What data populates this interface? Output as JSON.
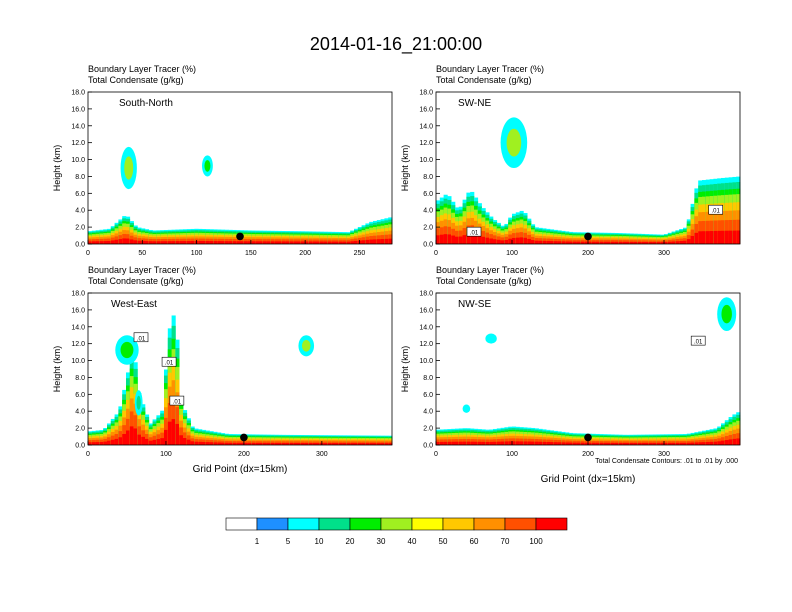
{
  "figure": {
    "title": "2014-01-16_21:00:00",
    "footnote": "Total Condensate Contours: .01 to .01 by .000"
  },
  "chart_data": [
    {
      "type": "heatmap",
      "panel_label": "South-North",
      "line1": "Boundary Layer Tracer    (%)",
      "line2": "Total Condensate    (g/kg)",
      "ylabel": "Height (km)",
      "xlabel": "",
      "xlim": [
        0,
        280
      ],
      "ylim": [
        0,
        18
      ],
      "xticks": [
        0,
        50,
        100,
        150,
        200,
        250
      ],
      "yticks": [
        "0.0",
        "2.0",
        "4.0",
        "6.0",
        "8.0",
        "10.0",
        "12.0",
        "14.0",
        "16.0",
        "18.0"
      ],
      "marker_x": 140,
      "contour_labels": [],
      "blobs": [
        {
          "x": [
            30,
            45
          ],
          "y": [
            6.5,
            11.5
          ],
          "v": [
            5,
            30
          ]
        },
        {
          "x": [
            105,
            115
          ],
          "y": [
            8,
            10.5
          ],
          "v": [
            5,
            20
          ]
        }
      ],
      "tops": [
        [
          0,
          1.5
        ],
        [
          20,
          1.8
        ],
        [
          35,
          3.5
        ],
        [
          45,
          2
        ],
        [
          60,
          1.6
        ],
        [
          100,
          1.8
        ],
        [
          150,
          1.6
        ],
        [
          200,
          1.5
        ],
        [
          240,
          1.4
        ],
        [
          260,
          2.6
        ],
        [
          280,
          3.2
        ]
      ]
    },
    {
      "type": "heatmap",
      "panel_label": "SW-NE",
      "line1": "Boundary Layer Tracer    (%)",
      "line2": "Total Condensate    (g/kg)",
      "ylabel": "Height (km)",
      "xlabel": "",
      "xlim": [
        0,
        400
      ],
      "ylim": [
        0,
        18
      ],
      "xticks": [
        0,
        100,
        200,
        300
      ],
      "yticks": [
        "0.0",
        "2.0",
        "4.0",
        "6.0",
        "8.0",
        "10.0",
        "12.0",
        "14.0",
        "16.0",
        "18.0"
      ],
      "marker_x": 200,
      "contour_labels": [
        {
          "text": ".01",
          "x": 50,
          "y": 1.4
        },
        {
          "text": ".01",
          "x": 368,
          "y": 4
        }
      ],
      "blobs": [
        {
          "x": [
            85,
            120
          ],
          "y": [
            9,
            15
          ],
          "v": [
            5,
            30
          ]
        }
      ],
      "tops": [
        [
          0,
          5
        ],
        [
          15,
          6
        ],
        [
          30,
          4
        ],
        [
          45,
          6.5
        ],
        [
          60,
          4.5
        ],
        [
          75,
          3
        ],
        [
          90,
          2
        ],
        [
          100,
          3.5
        ],
        [
          115,
          4
        ],
        [
          130,
          2
        ],
        [
          180,
          1.4
        ],
        [
          240,
          1.3
        ],
        [
          300,
          1.1
        ],
        [
          330,
          2
        ],
        [
          345,
          7.5
        ],
        [
          375,
          7.8
        ],
        [
          400,
          8
        ]
      ]
    },
    {
      "type": "heatmap",
      "panel_label": "West-East",
      "line1": "Boundary Layer Tracer    (%)",
      "line2": "Total Condensate    (g/kg)",
      "ylabel": "Height (km)",
      "xlabel": "Grid Point (dx=15km)",
      "xlim": [
        0,
        390
      ],
      "ylim": [
        0,
        18
      ],
      "xticks": [
        0,
        100,
        200,
        300
      ],
      "yticks": [
        "0.0",
        "2.0",
        "4.0",
        "6.0",
        "8.0",
        "10.0",
        "12.0",
        "14.0",
        "16.0",
        "18.0"
      ],
      "marker_x": 200,
      "contour_labels": [
        {
          "text": ".01",
          "x": 68,
          "y": 12.7
        },
        {
          "text": ".01",
          "x": 104,
          "y": 9.8
        },
        {
          "text": ".01",
          "x": 114,
          "y": 5.2
        }
      ],
      "blobs": [
        {
          "x": [
            35,
            65
          ],
          "y": [
            9.5,
            13
          ],
          "v": [
            5,
            20
          ]
        },
        {
          "x": [
            270,
            290
          ],
          "y": [
            10.5,
            13
          ],
          "v": [
            5,
            30
          ]
        },
        {
          "x": [
            60,
            70
          ],
          "y": [
            3.5,
            6.5
          ],
          "v": [
            5,
            10
          ]
        }
      ],
      "tops": [
        [
          0,
          1.6
        ],
        [
          20,
          1.8
        ],
        [
          40,
          4
        ],
        [
          50,
          8
        ],
        [
          58,
          12
        ],
        [
          66,
          6
        ],
        [
          80,
          2.5
        ],
        [
          95,
          4
        ],
        [
          105,
          14
        ],
        [
          112,
          16
        ],
        [
          120,
          5
        ],
        [
          135,
          2
        ],
        [
          180,
          1.3
        ],
        [
          250,
          1.2
        ],
        [
          390,
          1.1
        ]
      ]
    },
    {
      "type": "heatmap",
      "panel_label": "NW-SE",
      "line1": "Boundary Layer Tracer    (%)",
      "line2": "Total Condensate    (g/kg)",
      "ylabel": "Height (km)",
      "xlabel": "Grid Point (dx=15km)",
      "xlim": [
        0,
        400
      ],
      "ylim": [
        0,
        18
      ],
      "xticks": [
        0,
        100,
        200,
        300
      ],
      "yticks": [
        "0.0",
        "2.0",
        "4.0",
        "6.0",
        "8.0",
        "10.0",
        "12.0",
        "14.0",
        "16.0",
        "18.0"
      ],
      "marker_x": 200,
      "contour_labels": [
        {
          "text": ".01",
          "x": 345,
          "y": 12.3
        }
      ],
      "blobs": [
        {
          "x": [
            65,
            80
          ],
          "y": [
            12,
            13.2
          ],
          "v": [
            5,
            5
          ]
        },
        {
          "x": [
            35,
            45
          ],
          "y": [
            3.8,
            4.8
          ],
          "v": [
            5,
            5
          ]
        },
        {
          "x": [
            370,
            395
          ],
          "y": [
            13.5,
            17.5
          ],
          "v": [
            5,
            20
          ]
        }
      ],
      "tops": [
        [
          0,
          1.8
        ],
        [
          40,
          2
        ],
        [
          70,
          1.8
        ],
        [
          100,
          2.2
        ],
        [
          130,
          2
        ],
        [
          180,
          1.4
        ],
        [
          250,
          1.2
        ],
        [
          330,
          1.3
        ],
        [
          370,
          2
        ],
        [
          390,
          3.5
        ],
        [
          400,
          4
        ]
      ]
    }
  ],
  "colorbar": {
    "labels": [
      "1",
      "5",
      "10",
      "20",
      "30",
      "40",
      "50",
      "60",
      "70",
      "100"
    ],
    "colors": [
      "#ffffff",
      "#1e90ff",
      "#00ffff",
      "#00e08a",
      "#00ee00",
      "#a0f020",
      "#ffff00",
      "#ffc800",
      "#ff9000",
      "#ff5000",
      "#ff0000"
    ]
  }
}
